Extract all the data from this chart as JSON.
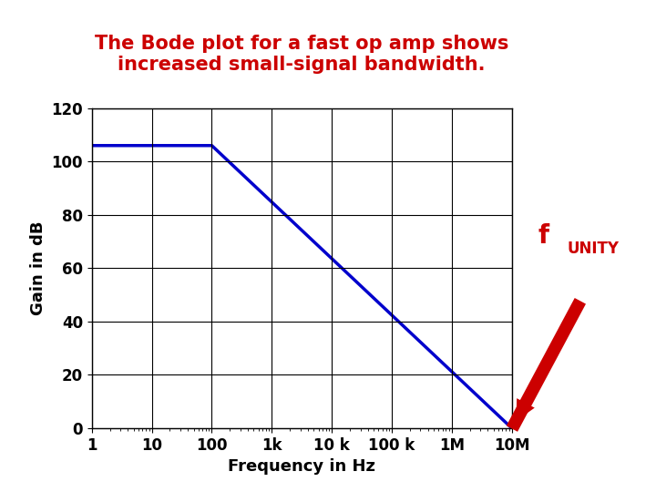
{
  "title_line1": "The Bode plot for a fast op amp shows",
  "title_line2": "increased small-signal bandwidth.",
  "title_color": "#cc0000",
  "title_fontsize": 15,
  "xlabel": "Frequency in Hz",
  "ylabel": "Gain in dB",
  "label_fontsize": 13,
  "tick_fontsize": 12,
  "ylim": [
    0,
    120
  ],
  "yticks": [
    0,
    20,
    40,
    60,
    80,
    100,
    120
  ],
  "xtick_labels": [
    "1",
    "10",
    "100",
    "1k",
    "10 k",
    "100 k",
    "1M",
    "10M"
  ],
  "xtick_values": [
    1,
    10,
    100,
    1000,
    10000,
    100000,
    1000000,
    10000000
  ],
  "line_x": [
    1,
    100,
    10000000
  ],
  "line_y": [
    106,
    106,
    0
  ],
  "line_color": "#0000cc",
  "line_width": 2.5,
  "grid_color": "#000000",
  "background_color": "#ffffff",
  "annotation_color": "#cc0000",
  "annotation_fontsize_main": 20,
  "annotation_fontsize_sub": 12,
  "arrow_color": "#cc0000"
}
